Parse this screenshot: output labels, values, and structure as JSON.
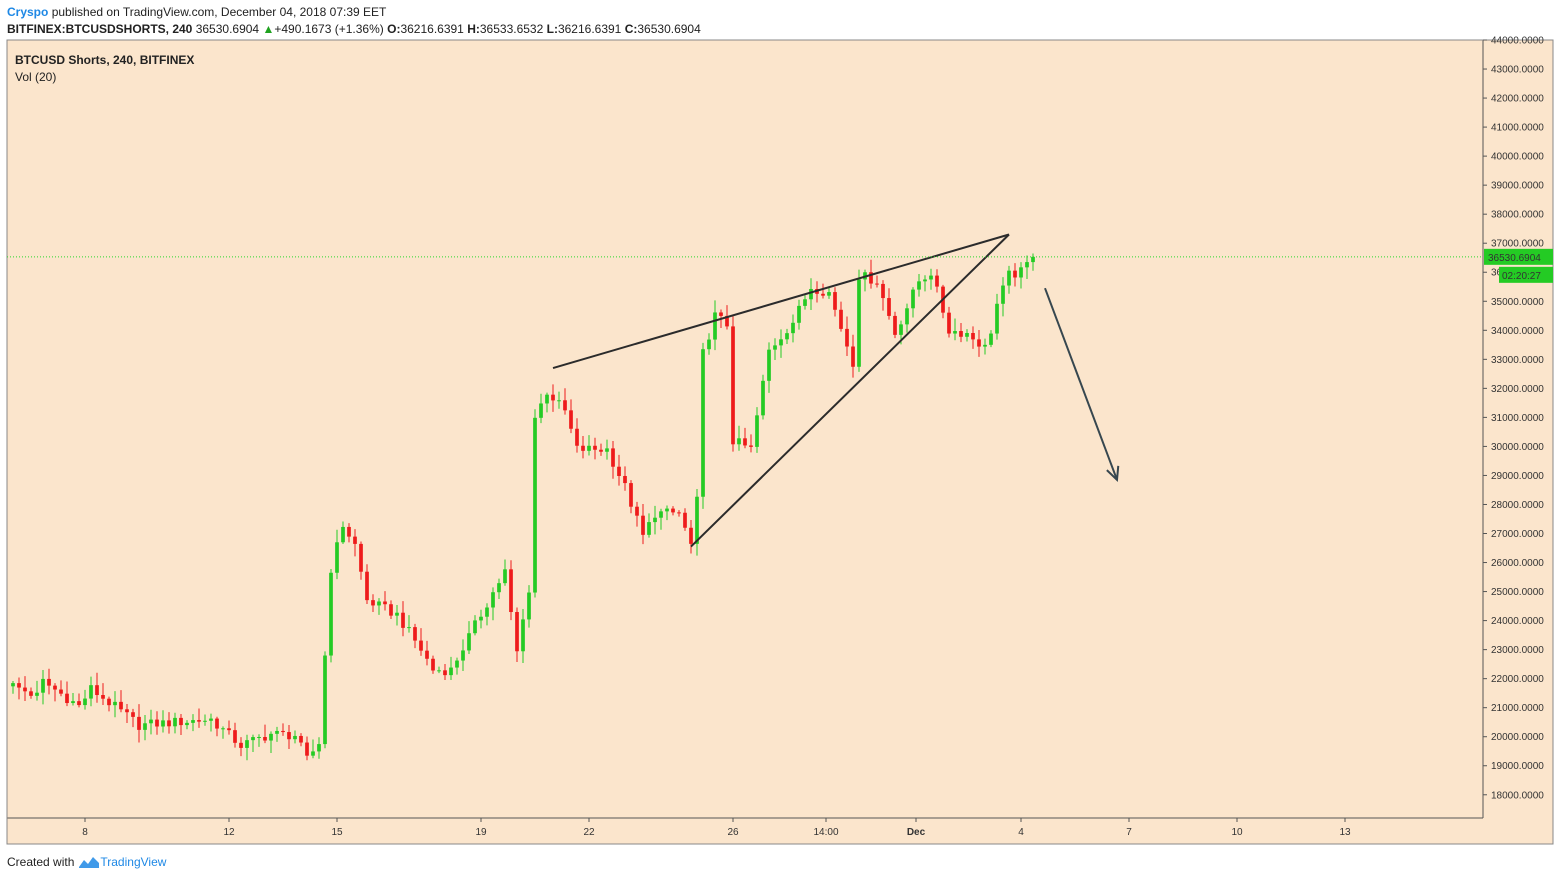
{
  "header": {
    "author": "Cryspo",
    "published_text": "published on TradingView.com, December 04, 2018 07:39 EET",
    "symbol": "BITFINEX:BTCUSDSHORTS, 240",
    "last": "36530.6904",
    "change": "+490.1673 (+1.36%)",
    "o_label": "O:",
    "o_value": "36216.6391",
    "h_label": "H:",
    "h_value": "36533.6532",
    "l_label": "L:",
    "l_value": "36216.6391",
    "c_label": "C:",
    "c_value": "36530.6904"
  },
  "legend": {
    "title": "BTCUSD Shorts, 240, BITFINEX",
    "indicator": "Vol (20)"
  },
  "footer": {
    "created_with": "Created with",
    "brand": "TradingView"
  },
  "colors": {
    "background": "#fbe5cc",
    "up": "#24cb24",
    "down": "#ee1b1b",
    "price_line": "#2bd62b",
    "annotation": "#2b2b2b",
    "arrow": "#37474f"
  },
  "chart_data": {
    "type": "candlestick",
    "title": "BTCUSD Shorts, 240, BITFINEX",
    "ylim": [
      17200,
      44000
    ],
    "y_ticks": [
      44000,
      43000,
      42000,
      41000,
      40000,
      39000,
      38000,
      37000,
      36000,
      35000,
      34000,
      33000,
      32000,
      31000,
      30000,
      29000,
      28000,
      27000,
      26000,
      25000,
      24000,
      23000,
      22000,
      21000,
      20000,
      19000,
      18000
    ],
    "y_tick_labels": [
      "44000.0000",
      "43000.0000",
      "42000.0000",
      "41000.0000",
      "40000.0000",
      "39000.0000",
      "38000.0000",
      "37000.0000",
      "36000.0000",
      "35000.0000",
      "34000.0000",
      "33000.0000",
      "32000.0000",
      "31000.0000",
      "30000.0000",
      "29000.0000",
      "28000.0000",
      "27000.0000",
      "26000.0000",
      "25000.0000",
      "24000.0000",
      "23000.0000",
      "22000.0000",
      "21000.0000",
      "20000.0000",
      "19000.0000",
      "18000.0000"
    ],
    "x_range": [
      0,
      246
    ],
    "x_ticks": [
      {
        "bar": 13,
        "label": "8"
      },
      {
        "bar": 37,
        "label": "12"
      },
      {
        "bar": 55,
        "label": "15"
      },
      {
        "bar": 79,
        "label": "19"
      },
      {
        "bar": 97,
        "label": "22"
      },
      {
        "bar": 121,
        "label": "26"
      },
      {
        "bar": 136.5,
        "label": "14:00"
      },
      {
        "bar": 151.5,
        "label": "Dec"
      },
      {
        "bar": 169,
        "label": "4"
      },
      {
        "bar": 187,
        "label": "7"
      },
      {
        "bar": 205,
        "label": "10"
      },
      {
        "bar": 223,
        "label": "13"
      }
    ],
    "last_price": 36530.6904,
    "last_price_label": "36530.6904",
    "countdown": "02:20:27",
    "anchors": [
      [
        0,
        21850
      ],
      [
        5,
        21400
      ],
      [
        6,
        21900
      ],
      [
        12,
        21050
      ],
      [
        14,
        21650
      ],
      [
        22,
        20400
      ],
      [
        34,
        20600
      ],
      [
        39,
        19700
      ],
      [
        44,
        20100
      ],
      [
        48,
        20050
      ],
      [
        50,
        19200
      ],
      [
        52,
        19800
      ],
      [
        54,
        25800
      ],
      [
        56,
        27300
      ],
      [
        58,
        26600
      ],
      [
        60,
        24700
      ],
      [
        65,
        24200
      ],
      [
        69,
        23000
      ],
      [
        71,
        22300
      ],
      [
        74,
        22300
      ],
      [
        80,
        24600
      ],
      [
        83,
        25700
      ],
      [
        84,
        24200
      ],
      [
        85,
        22900
      ],
      [
        87,
        25100
      ],
      [
        88,
        31000
      ],
      [
        90,
        31900
      ],
      [
        93,
        31200
      ],
      [
        95,
        29900
      ],
      [
        100,
        29900
      ],
      [
        103,
        28600
      ],
      [
        106,
        26900
      ],
      [
        108,
        27700
      ],
      [
        112,
        27700
      ],
      [
        114,
        26600
      ],
      [
        115,
        28100
      ],
      [
        116,
        33200
      ],
      [
        118,
        34500
      ],
      [
        120,
        34200
      ],
      [
        121,
        30200
      ],
      [
        124,
        29900
      ],
      [
        127,
        33300
      ],
      [
        131,
        34300
      ],
      [
        134,
        35500
      ],
      [
        137,
        35300
      ],
      [
        140,
        33500
      ],
      [
        141,
        32900
      ],
      [
        142,
        35900
      ],
      [
        145,
        35700
      ],
      [
        148,
        33900
      ],
      [
        152,
        35700
      ],
      [
        154,
        36000
      ],
      [
        157,
        34000
      ],
      [
        160,
        33900
      ],
      [
        163,
        33400
      ],
      [
        164,
        34000
      ],
      [
        165,
        34900
      ],
      [
        167,
        35900
      ],
      [
        169,
        36000
      ],
      [
        171,
        36530
      ]
    ],
    "annotations": {
      "upper_trendline": {
        "from": [
          91,
          32700
        ],
        "to": [
          167,
          37300
        ]
      },
      "lower_trendline": {
        "from": [
          114,
          26550
        ],
        "to": [
          167,
          37300
        ]
      },
      "projection_arrow": {
        "from": [
          173,
          35450
        ],
        "to": [
          185,
          28850
        ]
      }
    }
  }
}
